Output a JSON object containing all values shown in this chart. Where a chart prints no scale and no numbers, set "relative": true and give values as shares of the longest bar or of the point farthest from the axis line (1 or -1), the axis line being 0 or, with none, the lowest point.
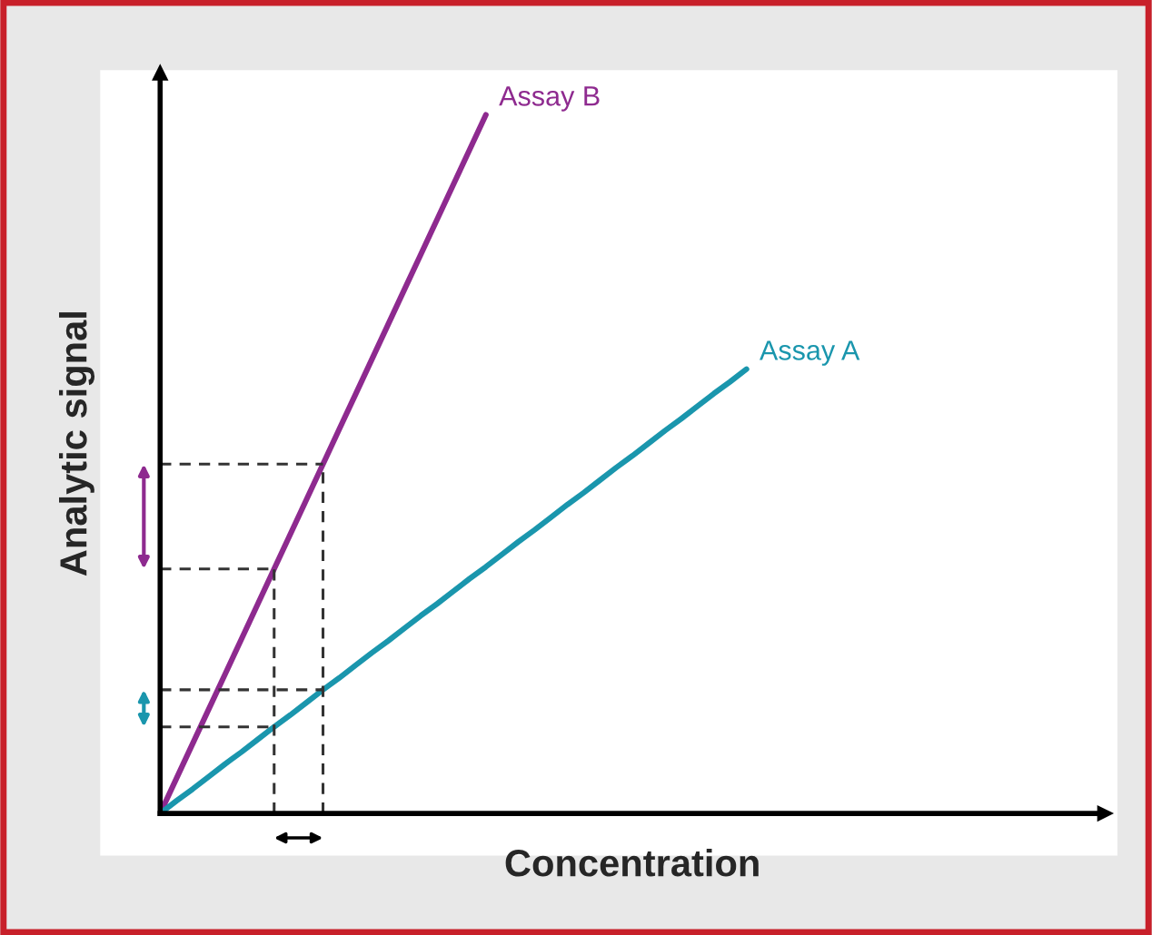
{
  "chart_data": {
    "type": "line",
    "relative": true,
    "xlabel": "Concentration",
    "ylabel": "Analytic signal",
    "tick_labels": false,
    "legend": false,
    "marker": "none",
    "line_style": "solid",
    "categories": [
      null,
      null,
      null,
      null,
      null,
      null,
      null,
      null,
      null,
      null,
      null,
      null,
      null,
      null,
      null,
      null,
      null,
      null,
      null,
      null,
      null,
      null,
      null,
      null,
      null,
      null,
      null,
      null,
      null,
      null,
      null,
      null,
      null,
      null,
      null,
      null,
      null,
      null,
      null,
      null,
      null,
      null,
      null,
      null,
      null,
      null,
      null,
      null,
      null,
      null,
      null,
      null,
      null,
      null,
      null,
      null,
      null,
      null,
      null
    ],
    "series": [
      {
        "name": "Assay B",
        "color": "#8e2a8f",
        "values": [
          0,
          0.05,
          0.1,
          0.15,
          0.2,
          0.25,
          0.3,
          0.35,
          0.4,
          0.45,
          0.5,
          0.55,
          0.6,
          0.65,
          0.7,
          0.75,
          0.8,
          0.85,
          0.9,
          0.95,
          1,
          null,
          null,
          null,
          null,
          null,
          null,
          null,
          null,
          null,
          null,
          null,
          null,
          null,
          null,
          null,
          null,
          null,
          null,
          null,
          null,
          null,
          null,
          null,
          null,
          null,
          null,
          null,
          null,
          null,
          null,
          null,
          null,
          null,
          null,
          null,
          null,
          null,
          null
        ]
      },
      {
        "name": "Assay A",
        "color": "#1a96ad",
        "values": [
          0,
          0.018,
          0.035,
          0.053,
          0.071,
          0.088,
          0.106,
          0.124,
          0.141,
          0.159,
          0.177,
          0.194,
          0.212,
          0.23,
          0.247,
          0.265,
          0.283,
          0.3,
          0.318,
          0.336,
          0.353,
          0.371,
          0.389,
          0.406,
          0.424,
          0.442,
          0.459,
          0.477,
          0.495,
          0.512,
          0.53,
          0.548,
          0.565,
          0.583,
          0.601,
          0.618,
          0.636,
          null,
          null,
          null,
          null,
          null,
          null,
          null,
          null,
          null,
          null,
          null,
          null,
          null,
          null,
          null,
          null,
          null,
          null,
          null,
          null,
          null,
          null
        ]
      }
    ],
    "ref_lines": [
      {
        "axis": "y",
        "value": 0.35,
        "line_style": "dashed",
        "color": "#333333"
      },
      {
        "axis": "y",
        "value": 0.5,
        "line_style": "dashed",
        "color": "#333333"
      },
      {
        "axis": "y",
        "value": 0.124,
        "line_style": "dashed",
        "color": "#333333"
      },
      {
        "axis": "y",
        "value": 0.177,
        "line_style": "dashed",
        "color": "#333333"
      }
    ]
  }
}
